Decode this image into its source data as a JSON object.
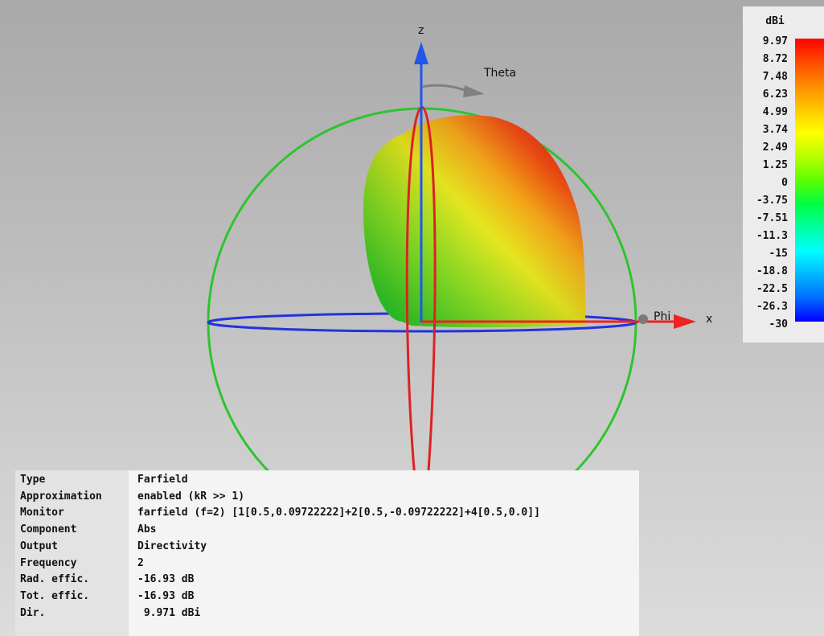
{
  "axes": {
    "z": "z",
    "x": "x",
    "theta": "Theta",
    "phi": "Phi"
  },
  "legend": {
    "unit": "dBi",
    "ticks": [
      "9.97",
      "8.72",
      "7.48",
      "6.23",
      "4.99",
      "3.74",
      "2.49",
      "1.25",
      "0",
      "-3.75",
      "-7.51",
      "-11.3",
      "-15",
      "-18.8",
      "-22.5",
      "-26.3",
      "-30"
    ],
    "colors": [
      "#ff0000",
      "#ff4a00",
      "#ff8c00",
      "#ffc800",
      "#ffff00",
      "#b8ff00",
      "#5cff00",
      "#00ff40",
      "#00ffa0",
      "#00ffff",
      "#00b8ff",
      "#006cff",
      "#0000ff"
    ]
  },
  "info": {
    "rows": [
      {
        "key": "Type",
        "value": "Farfield"
      },
      {
        "key": "Approximation",
        "value": "enabled (kR >> 1)"
      },
      {
        "key": "Monitor",
        "value": "farfield (f=2) [1[0.5,0.09722222]+2[0.5,-0.09722222]+4[0.5,0.0]]"
      },
      {
        "key": "Component",
        "value": "Abs"
      },
      {
        "key": "Output",
        "value": "Directivity"
      },
      {
        "key": "Frequency",
        "value": "2"
      },
      {
        "key": "Rad. effic.",
        "value": "-16.93 dB"
      },
      {
        "key": "Tot. effic.",
        "value": "-16.93 dB"
      },
      {
        "key": "Dir.",
        "value": " 9.971 dBi"
      }
    ]
  },
  "colors": {
    "sphere_outline": "#2ec42e",
    "equator": "#2233dd",
    "meridian": "#dd2222",
    "z_axis": "#2255ee",
    "x_axis": "#ee2222",
    "theta_arrow": "#808080"
  }
}
